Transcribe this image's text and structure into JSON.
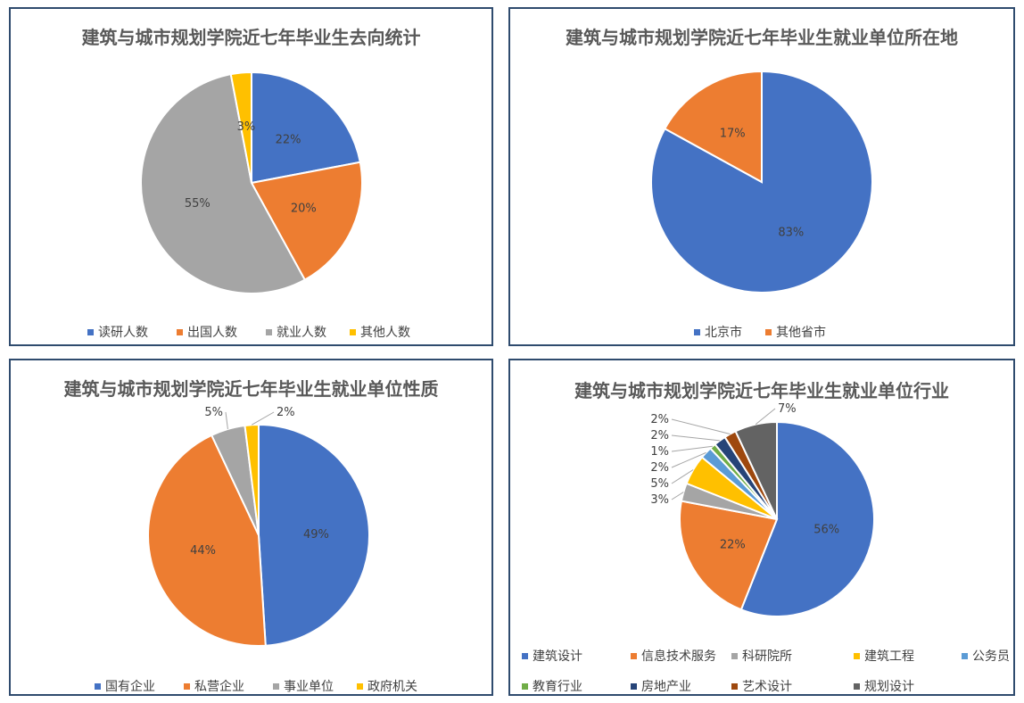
{
  "chart_data": [
    {
      "type": "pie",
      "title": "建筑与城市规划学院近七年毕业生去向统计",
      "categories": [
        "读研人数",
        "出国人数",
        "就业人数",
        "其他人数"
      ],
      "values": [
        22,
        20,
        55,
        3
      ],
      "labels": [
        "22%",
        "20%",
        "55%",
        "3%"
      ],
      "colors": [
        "#4472c4",
        "#ed7d31",
        "#a5a5a5",
        "#ffc000"
      ],
      "legend": "bottom"
    },
    {
      "type": "pie",
      "title": "建筑与城市规划学院近七年毕业生就业单位所在地",
      "categories": [
        "北京市",
        "其他省市"
      ],
      "values": [
        83,
        17
      ],
      "labels": [
        "83%",
        "17%"
      ],
      "colors": [
        "#4472c4",
        "#ed7d31"
      ],
      "legend": "bottom"
    },
    {
      "type": "pie",
      "title": "建筑与城市规划学院近七年毕业生就业单位性质",
      "categories": [
        "国有企业",
        "私营企业",
        "事业单位",
        "政府机关"
      ],
      "values": [
        49,
        44,
        5,
        2
      ],
      "labels": [
        "49%",
        "44%",
        "5%",
        "2%"
      ],
      "colors": [
        "#4472c4",
        "#ed7d31",
        "#a5a5a5",
        "#ffc000"
      ],
      "legend": "bottom"
    },
    {
      "type": "pie",
      "title": "建筑与城市规划学院近七年毕业生就业单位行业",
      "categories": [
        "建筑设计",
        "信息技术服务",
        "科研院所",
        "建筑工程",
        "公务员",
        "教育行业",
        "房地产业",
        "艺术设计",
        "规划设计"
      ],
      "values": [
        56,
        22,
        3,
        5,
        2,
        1,
        2,
        2,
        7
      ],
      "labels": [
        "56%",
        "22%",
        "3%",
        "5%",
        "2%",
        "1%",
        "2%",
        "2%",
        "7%"
      ],
      "colors": [
        "#4472c4",
        "#ed7d31",
        "#a5a5a5",
        "#ffc000",
        "#5b9bd5",
        "#70ad47",
        "#264478",
        "#9e480e",
        "#636363"
      ],
      "legend": "bottom"
    }
  ]
}
